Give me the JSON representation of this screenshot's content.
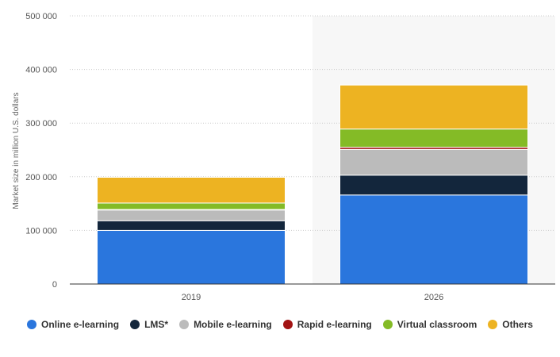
{
  "chart_data": {
    "type": "bar",
    "stacked": true,
    "categories": [
      "2019",
      "2026"
    ],
    "ylabel": "Market size in million U.S. dollars",
    "ylim": [
      0,
      500000
    ],
    "yticks": [
      0,
      100000,
      200000,
      300000,
      400000,
      500000
    ],
    "ytick_labels": [
      "0",
      "100 000",
      "200 000",
      "300 000",
      "400 000",
      "500 000"
    ],
    "grid": true,
    "highlighted_category": "2026",
    "legend_position": "bottom",
    "series": [
      {
        "name": "Online e-learning",
        "color": "#2a76dd",
        "values": [
          100000,
          166000
        ]
      },
      {
        "name": "LMS*",
        "color": "#13263c",
        "values": [
          18000,
          37000
        ]
      },
      {
        "name": "Mobile e-learning",
        "color": "#bbbbbb",
        "values": [
          20000,
          48000
        ]
      },
      {
        "name": "Rapid e-learning",
        "color": "#a21313",
        "values": [
          1000,
          4000
        ]
      },
      {
        "name": "Virtual classroom",
        "color": "#84bb26",
        "values": [
          12000,
          34000
        ]
      },
      {
        "name": "Others",
        "color": "#edb322",
        "values": [
          48000,
          82000
        ]
      }
    ]
  }
}
